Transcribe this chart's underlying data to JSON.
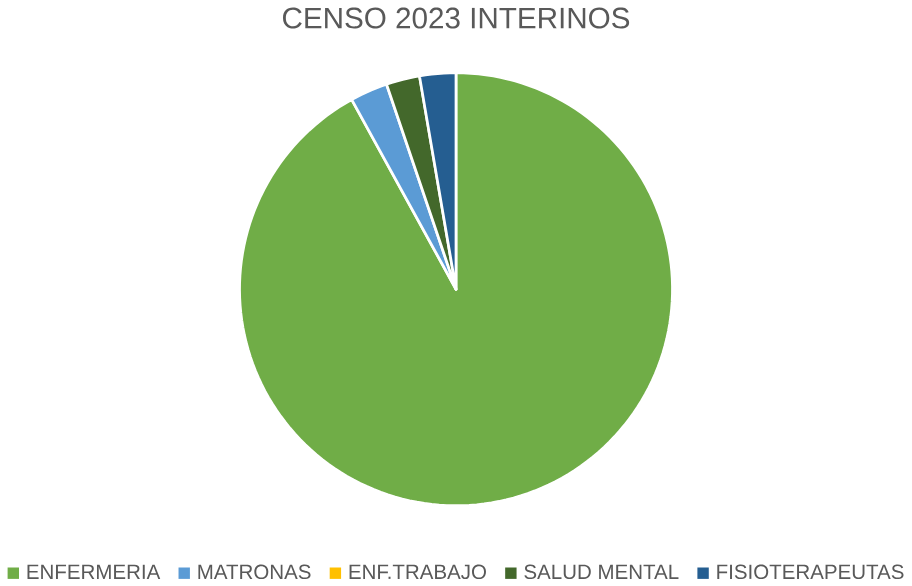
{
  "chart_data": {
    "type": "pie",
    "title": "CENSO 2023 INTERINOS",
    "categories": [
      "ENFERMERIA",
      "MATRONAS",
      "ENF.TRABAJO",
      "SALUD MENTAL",
      "FISIOTERAPEUTAS"
    ],
    "values": [
      92.0,
      2.8,
      null,
      2.5,
      2.7
    ],
    "colors": [
      "#70ad47",
      "#5b9bd5",
      "#ffc000",
      "#43682b",
      "#255e91"
    ],
    "legend": "bottom"
  }
}
